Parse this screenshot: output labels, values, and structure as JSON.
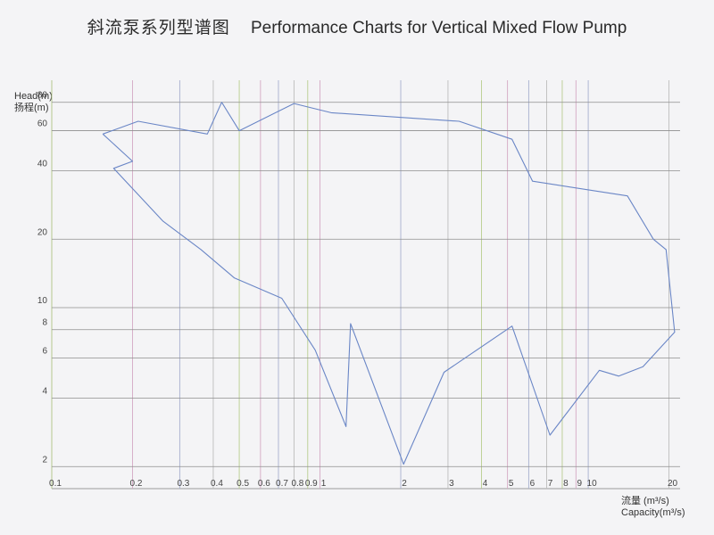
{
  "title_cn": "斜流泵系列型谱图",
  "title_en": "Performance Charts for Vertical Mixed Flow Pump",
  "chart_data": {
    "type": "line",
    "title": "斜流泵系列型谱图 Performance Charts for Vertical Mixed Flow Pump",
    "ylabel": [
      "Head(m)",
      "扬程(m)"
    ],
    "xlabel": [
      "流量 (m³/s)",
      "Capacity(m³/s)"
    ],
    "x_scale": "log",
    "y_scale": "log",
    "xlim": [
      0.1,
      22
    ],
    "ylim": [
      1.6,
      100
    ],
    "x_ticks": [
      {
        "v": 0.1,
        "label": "0.1"
      },
      {
        "v": 0.2,
        "label": "0.2"
      },
      {
        "v": 0.3,
        "label": "0.3"
      },
      {
        "v": 0.4,
        "label": "0.4"
      },
      {
        "v": 0.5,
        "label": "0.5"
      },
      {
        "v": 0.6,
        "label": "0.6"
      },
      {
        "v": 0.7,
        "label": "0.7"
      },
      {
        "v": 0.8,
        "label": "0.8"
      },
      {
        "v": 0.9,
        "label": "0.9"
      },
      {
        "v": 1,
        "label": "1"
      },
      {
        "v": 2,
        "label": "2"
      },
      {
        "v": 3,
        "label": "3"
      },
      {
        "v": 4,
        "label": "4"
      },
      {
        "v": 5,
        "label": "5"
      },
      {
        "v": 6,
        "label": "6"
      },
      {
        "v": 7,
        "label": "7"
      },
      {
        "v": 8,
        "label": "8"
      },
      {
        "v": 9,
        "label": "9"
      },
      {
        "v": 10,
        "label": "10"
      },
      {
        "v": 20,
        "label": "20"
      }
    ],
    "y_ticks": [
      {
        "v": 2,
        "label": "2"
      },
      {
        "v": 4,
        "label": "4"
      },
      {
        "v": 6,
        "label": "6"
      },
      {
        "v": 8,
        "label": "8"
      },
      {
        "v": 10,
        "label": "10"
      },
      {
        "v": 20,
        "label": "20"
      },
      {
        "v": 40,
        "label": "40"
      },
      {
        "v": 60,
        "label": "60"
      },
      {
        "v": 80,
        "label": "80"
      }
    ],
    "series": [
      {
        "color": "#6a86c6",
        "points": [
          [
            0.155,
            58
          ],
          [
            0.21,
            66
          ],
          [
            0.38,
            58
          ],
          [
            0.43,
            80
          ],
          [
            0.5,
            60
          ],
          [
            0.8,
            79
          ],
          [
            1.1,
            72
          ],
          [
            3.3,
            66
          ],
          [
            5.2,
            55
          ],
          [
            6.2,
            36
          ],
          [
            14,
            31
          ],
          [
            17.5,
            20
          ],
          [
            19.5,
            18
          ],
          [
            21,
            7.8
          ],
          [
            16,
            5.5
          ],
          [
            13,
            5
          ],
          [
            11,
            5.3
          ],
          [
            7.2,
            2.75
          ],
          [
            5.2,
            8.3
          ],
          [
            2.9,
            5.2
          ],
          [
            2.05,
            2.05
          ],
          [
            1.3,
            8.5
          ],
          [
            1.25,
            3
          ],
          [
            0.96,
            6.5
          ],
          [
            0.72,
            11
          ],
          [
            0.48,
            13.5
          ],
          [
            0.36,
            18
          ],
          [
            0.26,
            24
          ],
          [
            0.17,
            41
          ],
          [
            0.2,
            44
          ],
          [
            0.155,
            58
          ]
        ]
      }
    ],
    "grid": true
  },
  "grid_colors": [
    "#b9cd8e",
    "#d4a9c4",
    "#a7b0cf",
    "#bdbdbd"
  ]
}
